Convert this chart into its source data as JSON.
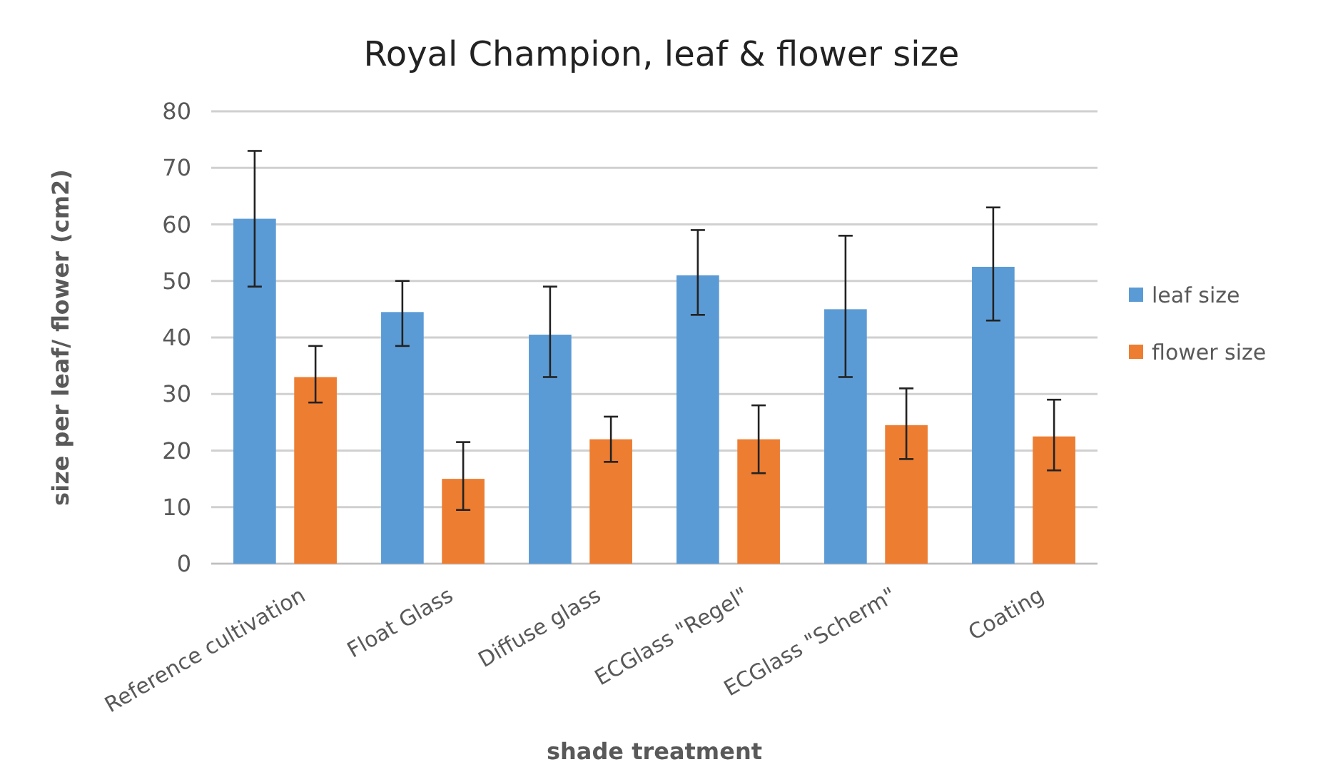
{
  "chart_data": {
    "type": "bar",
    "title": "Royal Champion, leaf & flower size",
    "xlabel": "shade treatment",
    "ylabel": "size per leaf/ flower (cm2)",
    "categories": [
      "Reference cultivation",
      "Float Glass",
      "Diffuse glass",
      "ECGlass \"Regel\"",
      "ECGlass \"Scherm\"",
      "Coating"
    ],
    "series": [
      {
        "name": "leaf size",
        "color": "#5b9bd5",
        "values": [
          61,
          44.5,
          40.5,
          51,
          45,
          52.5
        ],
        "errors": [
          [
            49,
            73
          ],
          [
            38.5,
            50
          ],
          [
            33,
            49
          ],
          [
            44,
            59
          ],
          [
            33,
            58
          ],
          [
            43,
            63
          ]
        ]
      },
      {
        "name": "flower size",
        "color": "#ed7d31",
        "values": [
          33,
          15,
          22,
          22,
          24.5,
          22.5
        ],
        "errors": [
          [
            28.5,
            38.5
          ],
          [
            9.5,
            21.5
          ],
          [
            18,
            26
          ],
          [
            16,
            28
          ],
          [
            18.5,
            31
          ],
          [
            16.5,
            29
          ]
        ]
      }
    ],
    "ylim": [
      0,
      80
    ],
    "yticks": [
      0,
      10,
      20,
      30,
      40,
      50,
      60,
      70,
      80
    ],
    "grid": "y",
    "legend": "right"
  }
}
